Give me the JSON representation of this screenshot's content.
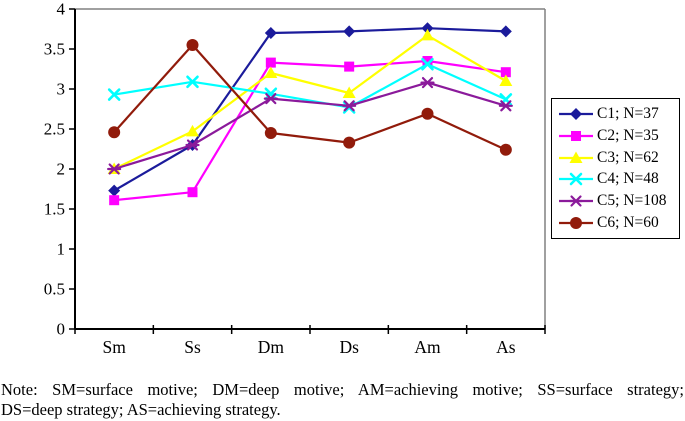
{
  "chart_data": {
    "type": "line",
    "categories": [
      "Sm",
      "Ss",
      "Dm",
      "Ds",
      "Am",
      "As"
    ],
    "series": [
      {
        "name": "C1; N=37",
        "color": "#1B1B9B",
        "marker": "diamond",
        "values": [
          1.73,
          2.3,
          3.7,
          3.72,
          3.76,
          3.72
        ]
      },
      {
        "name": "C2; N=35",
        "color": "#FF00FF",
        "marker": "square",
        "values": [
          1.61,
          1.71,
          3.33,
          3.28,
          3.35,
          3.21
        ]
      },
      {
        "name": "C3; N=62",
        "color": "#FFFF00",
        "marker": "triangle",
        "values": [
          2.0,
          2.47,
          3.2,
          2.95,
          3.67,
          3.1
        ]
      },
      {
        "name": "C4; N=48",
        "color": "#00FFFF",
        "marker": "x",
        "values": [
          2.93,
          3.09,
          2.94,
          2.77,
          3.31,
          2.87
        ]
      },
      {
        "name": "C5; N=108",
        "color": "#8B1A9B",
        "marker": "asterisk",
        "values": [
          2.0,
          2.3,
          2.88,
          2.79,
          3.08,
          2.79
        ]
      },
      {
        "name": "C6; N=60",
        "color": "#911B0B",
        "marker": "circle",
        "values": [
          2.46,
          3.55,
          2.45,
          2.33,
          2.69,
          2.24
        ]
      }
    ],
    "ylim": [
      0,
      4
    ],
    "ytick_step": 0.5,
    "ytick_labels": [
      "0",
      "0.5",
      "1",
      "1.5",
      "2",
      "2.5",
      "3",
      "3.5",
      "4"
    ],
    "grid": false,
    "legend_position": "right",
    "axis_color": "#000000",
    "frame_color": "#808080"
  },
  "note": {
    "line1": "Note: SM=surface motive; DM=deep motive; AM=achieving motive; SS=surface strategy;",
    "line2": "DS=deep strategy; AS=achieving strategy."
  }
}
